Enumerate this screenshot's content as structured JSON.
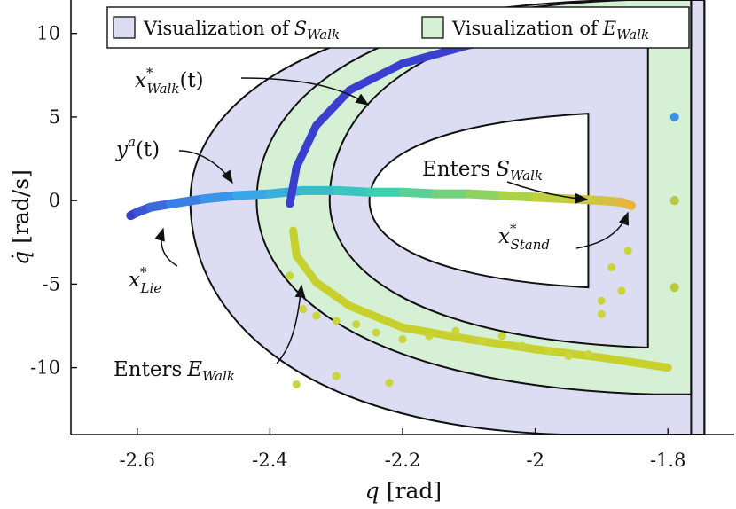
{
  "chart_data": {
    "type": "scatter",
    "xlabel": {
      "var": "q",
      "unit": "[rad]"
    },
    "ylabel": {
      "var": "q̇",
      "unit": "[rad/s]"
    },
    "xlim": [
      -2.7,
      -1.7
    ],
    "ylim": [
      -14,
      12
    ],
    "xticks": [
      -2.6,
      -2.4,
      -2.2,
      -2,
      -1.8
    ],
    "xtick_labels": [
      "-2.6",
      "-2.4",
      "-2.2",
      "-2",
      "-1.8"
    ],
    "yticks": [
      10,
      5,
      0,
      -5,
      -10
    ],
    "ytick_labels": [
      "10",
      "5",
      "0",
      "-5",
      "-10"
    ],
    "grid": false,
    "legend": {
      "position": "top",
      "entries": [
        {
          "label": "Visualization of",
          "sym": "S",
          "sub": "Walk",
          "color": "#dcdcf2"
        },
        {
          "label": "Visualization of",
          "sym": "E",
          "sub": "Walk",
          "color": "#d6f0d6"
        }
      ]
    },
    "regions": {
      "S_walk_color": "#dcdcf2",
      "E_walk_color": "#d6f0d6",
      "inner_color": "#ffffff",
      "boundaries": [
        {
          "vertex": [
            -2.52,
            0
          ],
          "top": [
            -1.88,
            12
          ],
          "bottom": [
            -1.96,
            -14
          ],
          "right_x": -1.745
        },
        {
          "vertex": [
            -2.42,
            0
          ],
          "top": [
            -1.86,
            12
          ],
          "bottom": [
            -1.82,
            -11.6
          ],
          "right_x": -1.765
        },
        {
          "vertex": [
            -2.31,
            0
          ],
          "top": [
            -1.85,
            11.2
          ],
          "bottom": [
            -1.83,
            -8.8
          ],
          "right_x": -1.83
        },
        {
          "vertex": [
            -2.25,
            0
          ],
          "top": [
            -1.92,
            5.2
          ],
          "bottom": [
            -1.92,
            -5.2
          ],
          "right_x": -1.92
        }
      ]
    },
    "series": [
      {
        "kind": "trajectory",
        "colors": [
          "#3a3fcc",
          "#3aa0ee",
          "#3ccfb0",
          "#b8d43c",
          "#f0b040"
        ],
        "x": [
          -2.61,
          -2.6,
          -2.58,
          -2.55,
          -2.5,
          -2.45,
          -2.4,
          -2.35,
          -2.3,
          -2.25,
          -2.2,
          -2.15,
          -2.1,
          -2.05,
          -2.0,
          -1.95,
          -1.9,
          -1.87,
          -1.855
        ],
        "y": [
          -0.9,
          -0.7,
          -0.4,
          -0.2,
          0.1,
          0.3,
          0.4,
          0.6,
          0.6,
          0.5,
          0.5,
          0.4,
          0.4,
          0.3,
          0.2,
          0.1,
          0.0,
          -0.1,
          -0.3
        ]
      },
      {
        "kind": "walk_orbit_upper",
        "color": "#3b3fcf",
        "x": [
          -2.37,
          -2.36,
          -2.33,
          -2.28,
          -2.2,
          -2.1,
          -2.0,
          -1.93
        ],
        "y": [
          -0.2,
          2.0,
          4.5,
          6.6,
          8.2,
          9.3,
          9.9,
          10.3
        ]
      },
      {
        "kind": "walk_orbit_lower",
        "color": "#c7d02c",
        "x": [
          -2.365,
          -2.36,
          -2.33,
          -2.28,
          -2.2,
          -2.1,
          -2.0,
          -1.9,
          -1.8
        ],
        "y": [
          -1.8,
          -3.3,
          -4.9,
          -6.3,
          -7.6,
          -8.3,
          -8.9,
          -9.4,
          -10.0
        ]
      },
      {
        "kind": "scatter_yellow",
        "color": "#cad53a",
        "x": [
          -2.35,
          -2.33,
          -2.3,
          -2.27,
          -2.24,
          -2.2,
          -2.16,
          -2.12,
          -2.08,
          -2.05,
          -2.02,
          -1.98,
          -1.95,
          -1.92,
          -1.9,
          -1.87,
          -1.86,
          -1.885,
          -1.9,
          -2.22,
          -2.36,
          -2.37,
          -2.3
        ],
        "y": [
          -6.5,
          -6.9,
          -7.2,
          -7.4,
          -7.9,
          -8.3,
          -8.1,
          -7.8,
          -8.4,
          -8.1,
          -8.7,
          -9.0,
          -9.3,
          -9.2,
          -6.8,
          -5.4,
          -3.0,
          -4.0,
          -6.0,
          -10.9,
          -11.0,
          -4.5,
          -10.5
        ]
      },
      {
        "kind": "scatter_right",
        "x": [
          -1.79,
          -1.79,
          -1.79,
          -1.79
        ],
        "y": [
          5.0,
          0.0,
          0.0,
          -5.2
        ],
        "colors": [
          "#3d8fe8",
          "#3d8fe8",
          "#b8c93a",
          "#b8c93a"
        ]
      }
    ],
    "annotations": [
      {
        "id": "walk-orbit",
        "main": "x",
        "sup": "*",
        "sub": "Walk",
        "suffix": "(t)"
      },
      {
        "id": "output",
        "main": "y",
        "sup": "a",
        "sub": "",
        "suffix": "(t)"
      },
      {
        "id": "lie",
        "main": "x",
        "sup": "*",
        "sub": "Lie",
        "suffix": ""
      },
      {
        "id": "stand",
        "main": "x",
        "sup": "*",
        "sub": "Stand",
        "suffix": ""
      },
      {
        "id": "enters-s",
        "text": "Enters",
        "sym": "S",
        "sub": "Walk"
      },
      {
        "id": "enters-e",
        "text": "Enters",
        "sym": "E",
        "sub": "Walk"
      }
    ]
  }
}
